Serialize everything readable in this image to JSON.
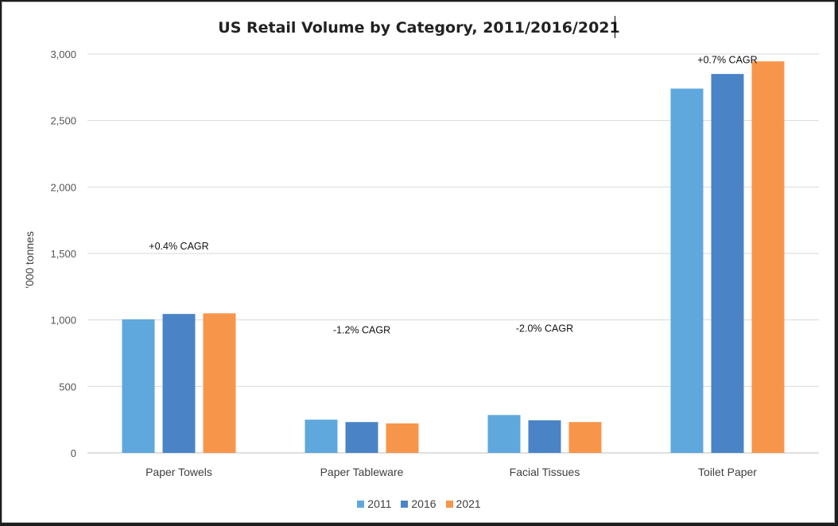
{
  "chart_data": {
    "type": "bar",
    "title": "US Retail Volume by Category, 2011/2016/2021",
    "xlabel": "",
    "ylabel": "'000 tonnes",
    "ylim": [
      0,
      3000
    ],
    "yticks": [
      0,
      500,
      1000,
      1500,
      2000,
      2500,
      3000
    ],
    "ytick_labels": [
      "0",
      "500",
      "1,000",
      "1,500",
      "2,000",
      "2,500",
      "3,000"
    ],
    "grid": true,
    "legend_position": "bottom",
    "categories": [
      "Paper Towels",
      "Paper Tableware",
      "Facial Tissues",
      "Toilet Paper"
    ],
    "series": [
      {
        "name": "2011",
        "color": "#5fa8dd",
        "values": [
          1005,
          250,
          285,
          2740
        ]
      },
      {
        "name": "2016",
        "color": "#4a84c6",
        "values": [
          1045,
          232,
          245,
          2850
        ]
      },
      {
        "name": "2021",
        "color": "#f7964a",
        "values": [
          1050,
          222,
          232,
          2945
        ]
      }
    ],
    "annotations": [
      {
        "category": "Paper Towels",
        "text": "+0.4% CAGR",
        "value": 1530
      },
      {
        "category": "Paper Tableware",
        "text": "-1.2% CAGR",
        "value": 900
      },
      {
        "category": "Facial Tissues",
        "text": "-2.0% CAGR",
        "value": 910
      },
      {
        "category": "Toilet Paper",
        "text": "+0.7% CAGR",
        "value": 2930
      }
    ]
  }
}
